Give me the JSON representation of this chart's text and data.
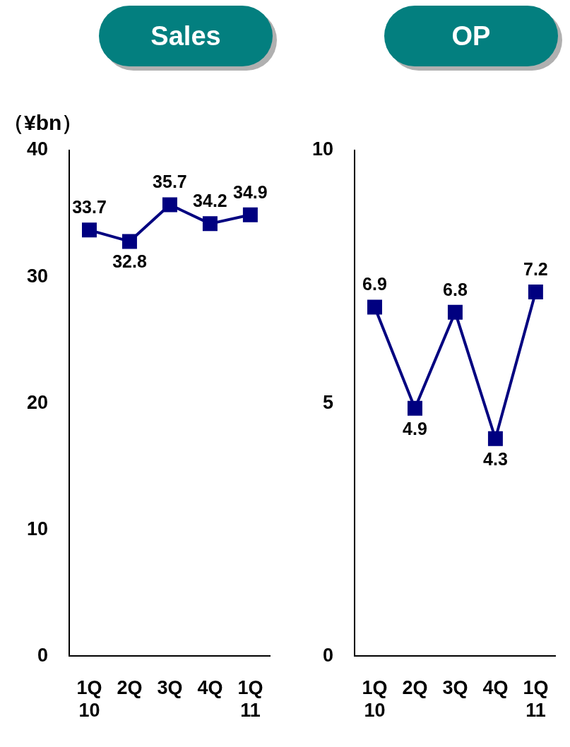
{
  "chart_data": [
    {
      "type": "line",
      "title": "Sales",
      "ylabel": "（¥bn）",
      "categories": [
        "1Q\n10",
        "2Q",
        "3Q",
        "4Q",
        "1Q\n11"
      ],
      "series": [
        {
          "color": "#000080",
          "values": [
            33.7,
            32.8,
            35.7,
            34.2,
            34.9
          ]
        }
      ],
      "ylim": [
        0,
        40
      ],
      "yticks": [
        0,
        10,
        20,
        30,
        40
      ],
      "data_labels": true,
      "marker": "square",
      "line_style": "solid",
      "grid": false,
      "legend": false
    },
    {
      "type": "line",
      "title": "OP",
      "categories": [
        "1Q\n10",
        "2Q",
        "3Q",
        "4Q",
        "1Q\n11"
      ],
      "series": [
        {
          "color": "#000080",
          "values": [
            6.9,
            4.9,
            6.8,
            4.3,
            7.2
          ]
        }
      ],
      "ylim": [
        0,
        10
      ],
      "yticks": [
        0,
        5,
        10
      ],
      "data_labels": true,
      "marker": "square",
      "line_style": "solid",
      "grid": false,
      "legend": false
    }
  ]
}
